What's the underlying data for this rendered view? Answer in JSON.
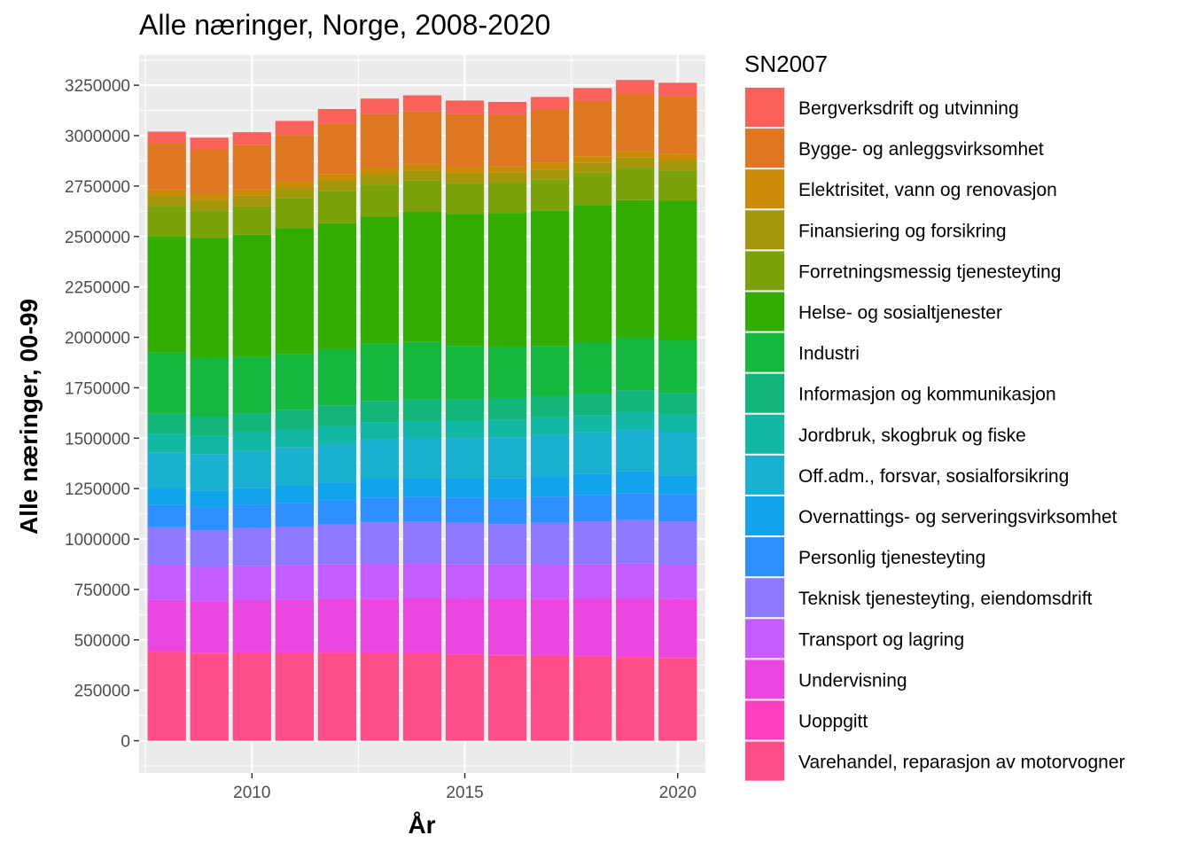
{
  "chart_data": {
    "type": "bar",
    "stacked": true,
    "title": "Alle næringer, Norge, 2008-2020",
    "xlabel": "År",
    "ylabel": "Alle næringer, 00-99",
    "legend_title": "SN2007",
    "legend_position": "right",
    "grid": true,
    "xlim": [
      2007.35,
      2020.65
    ],
    "ylim": [
      -160000,
      3400000
    ],
    "x_ticks": [
      2010,
      2015,
      2020
    ],
    "y_ticks": [
      0,
      250000,
      500000,
      750000,
      1000000,
      1250000,
      1500000,
      1750000,
      2000000,
      2250000,
      2500000,
      2750000,
      3000000,
      3250000
    ],
    "y_tick_labels": [
      "0",
      "250000",
      "500000",
      "750000",
      "1000000",
      "1250000",
      "1500000",
      "1750000",
      "2000000",
      "2250000",
      "2500000",
      "2750000",
      "3000000",
      "3250000"
    ],
    "x_tick_labels": [
      "2010",
      "2015",
      "2020"
    ],
    "categories": [
      2008,
      2009,
      2010,
      2011,
      2012,
      2013,
      2014,
      2015,
      2016,
      2017,
      2018,
      2019,
      2020
    ],
    "legend": [
      "Bergverksdrift og utvinning",
      "Bygge- og anleggsvirksomhet",
      "Elektrisitet, vann og renovasjon",
      "Finansiering og forsikring",
      "Forretningsmessig tjenesteyting",
      "Helse- og sosialtjenester",
      "Industri",
      "Informasjon og kommunikasjon",
      "Jordbruk, skogbruk og fiske",
      "Off.adm., forsvar, sosialforsikring",
      "Overnattings- og serveringsvirksomhet",
      "Personlig tjenesteyting",
      "Teknisk tjenesteyting, eiendomsdrift",
      "Transport og lagring",
      "Undervisning",
      "Uoppgitt",
      "Varehandel, reparasjon av motorvogner"
    ],
    "series": [
      {
        "name": "Varehandel, reparasjon av motorvogner",
        "color": "#FF4D88",
        "values": [
          440000,
          432000,
          433000,
          433000,
          435000,
          433000,
          433000,
          428000,
          423000,
          420000,
          418000,
          415000,
          410000
        ]
      },
      {
        "name": "Uoppgitt",
        "color": "#FF3FC0",
        "values": [
          5000,
          5000,
          5000,
          5000,
          5000,
          5000,
          5000,
          5000,
          5000,
          5000,
          5000,
          5000,
          5000
        ]
      },
      {
        "name": "Undervisning",
        "color": "#E946E0",
        "values": [
          253000,
          255000,
          259000,
          262000,
          264000,
          267000,
          270000,
          273000,
          276000,
          280000,
          283000,
          286000,
          290000
        ]
      },
      {
        "name": "Transport og lagring",
        "color": "#C55CFF",
        "values": [
          175000,
          170000,
          170000,
          172000,
          172000,
          172000,
          172000,
          170000,
          170000,
          170000,
          170000,
          172000,
          168000
        ]
      },
      {
        "name": "Teknisk tjenesteyting, eiendomsdrift",
        "color": "#8D79FF",
        "values": [
          185000,
          182000,
          187000,
          190000,
          196000,
          206000,
          205000,
          205000,
          200000,
          205000,
          212000,
          217000,
          215000
        ]
      },
      {
        "name": "Personlig tjenesteyting",
        "color": "#2E90FF",
        "values": [
          110000,
          112000,
          115000,
          117000,
          119000,
          121000,
          123000,
          125000,
          127000,
          130000,
          131000,
          133000,
          135000
        ]
      },
      {
        "name": "Overnattings- og serveringsvirksomhet",
        "color": "#11A4EC",
        "values": [
          85000,
          85000,
          85000,
          87000,
          90000,
          95000,
          95000,
          97000,
          99000,
          102000,
          105000,
          107000,
          92000
        ]
      },
      {
        "name": "Off.adm., forsvar, sosialforsikring",
        "color": "#1AB0D0",
        "values": [
          175000,
          180000,
          183000,
          188000,
          192000,
          194000,
          196000,
          198000,
          205000,
          205000,
          205000,
          210000,
          215000
        ]
      },
      {
        "name": "Jordbruk, skogbruk og fiske",
        "color": "#12B8A3",
        "values": [
          95000,
          93000,
          91000,
          89000,
          88000,
          87000,
          86000,
          86000,
          86000,
          86000,
          86000,
          86000,
          88000
        ]
      },
      {
        "name": "Informasjon og kommunikasjon",
        "color": "#12B57A",
        "values": [
          98000,
          95000,
          96000,
          98000,
          102000,
          105000,
          107000,
          106000,
          106000,
          105000,
          106000,
          107000,
          107000
        ]
      },
      {
        "name": "Industri",
        "color": "#15B73F",
        "values": [
          305000,
          290000,
          280000,
          275000,
          278000,
          285000,
          285000,
          265000,
          255000,
          250000,
          255000,
          260000,
          262000
        ]
      },
      {
        "name": "Helse- og sosialtjenester",
        "color": "#33AC04",
        "values": [
          575000,
          595000,
          605000,
          625000,
          625000,
          628000,
          645000,
          655000,
          665000,
          670000,
          680000,
          682000,
          690000
        ]
      },
      {
        "name": "Forretningsmessig tjenesteyting",
        "color": "#7BA20A",
        "values": [
          150000,
          135000,
          140000,
          150000,
          160000,
          160000,
          155000,
          150000,
          150000,
          155000,
          160000,
          162000,
          150000
        ]
      },
      {
        "name": "Finansiering og forsikring",
        "color": "#A3960A",
        "values": [
          52000,
          53000,
          53000,
          52000,
          52000,
          51000,
          50000,
          50000,
          49000,
          49000,
          49000,
          49000,
          50000
        ]
      },
      {
        "name": "Elektrisitet, vann og renovasjon",
        "color": "#CB8A08",
        "values": [
          30000,
          30000,
          31000,
          31000,
          32000,
          33000,
          33000,
          33000,
          33000,
          33000,
          33000,
          33000,
          34000
        ]
      },
      {
        "name": "Bygge- og anleggsvirksomhet",
        "color": "#DF7621",
        "values": [
          230000,
          220000,
          222000,
          230000,
          250000,
          265000,
          260000,
          260000,
          255000,
          265000,
          275000,
          285000,
          285000
        ]
      },
      {
        "name": "Bergverksdrift og utvinning",
        "color": "#F8625B",
        "values": [
          57000,
          58000,
          62000,
          69000,
          72000,
          77000,
          80000,
          68000,
          63000,
          62000,
          63000,
          67000,
          66000
        ]
      }
    ]
  }
}
